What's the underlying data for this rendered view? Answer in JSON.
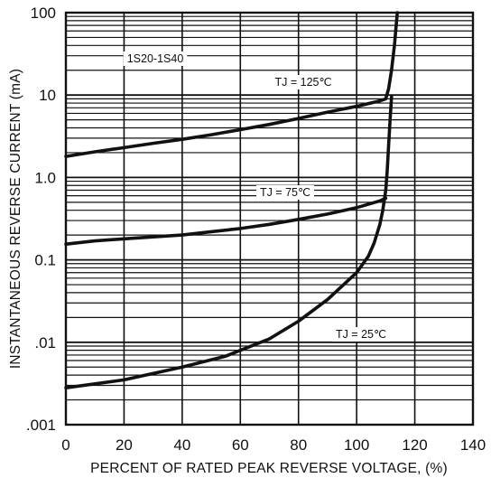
{
  "chart_data": {
    "type": "line",
    "title": "",
    "xlabel": "PERCENT OF RATED PEAK REVERSE VOLTAGE, (%)",
    "ylabel": "INSTANTANEOUS REVERSE CURRENT (mA)",
    "xlim": [
      0,
      140
    ],
    "ylim": [
      0.001,
      100
    ],
    "y_scale": "log",
    "grid": true,
    "x_ticks": [
      0,
      20,
      40,
      60,
      80,
      100,
      120,
      140
    ],
    "x_tick_labels": [
      "0",
      "20",
      "40",
      "60",
      "80",
      "100",
      "120",
      "140"
    ],
    "y_ticks": [
      0.001,
      0.01,
      0.1,
      1,
      10,
      100
    ],
    "y_tick_labels": [
      ".001",
      ".01",
      "0.1",
      "1.0",
      "10",
      "100"
    ],
    "part_label": "1S20-1S40",
    "series": [
      {
        "name": "TJ = 125℃",
        "points": [
          [
            0,
            1.8
          ],
          [
            10,
            2.05
          ],
          [
            20,
            2.3
          ],
          [
            30,
            2.6
          ],
          [
            40,
            2.9
          ],
          [
            50,
            3.3
          ],
          [
            60,
            3.8
          ],
          [
            70,
            4.4
          ],
          [
            80,
            5.2
          ],
          [
            90,
            6.2
          ],
          [
            100,
            7.3
          ],
          [
            108,
            8.5
          ],
          [
            110,
            9.0
          ],
          [
            111,
            12
          ],
          [
            112,
            20
          ],
          [
            113,
            40
          ],
          [
            114,
            100
          ]
        ]
      },
      {
        "name": "TJ = 75℃",
        "points": [
          [
            0,
            0.155
          ],
          [
            10,
            0.17
          ],
          [
            20,
            0.18
          ],
          [
            30,
            0.19
          ],
          [
            40,
            0.2
          ],
          [
            50,
            0.22
          ],
          [
            60,
            0.24
          ],
          [
            70,
            0.27
          ],
          [
            80,
            0.31
          ],
          [
            90,
            0.36
          ],
          [
            100,
            0.43
          ],
          [
            108,
            0.52
          ],
          [
            110,
            0.56
          ]
        ]
      },
      {
        "name": "TJ = 25℃",
        "points": [
          [
            0,
            0.0028
          ],
          [
            20,
            0.0035
          ],
          [
            40,
            0.005
          ],
          [
            55,
            0.0068
          ],
          [
            70,
            0.011
          ],
          [
            80,
            0.018
          ],
          [
            90,
            0.033
          ],
          [
            100,
            0.07
          ],
          [
            104,
            0.11
          ],
          [
            106,
            0.16
          ],
          [
            108,
            0.27
          ],
          [
            109,
            0.4
          ],
          [
            110,
            0.7
          ],
          [
            110.5,
            1.2
          ],
          [
            111,
            2.5
          ],
          [
            111.5,
            5
          ],
          [
            112,
            9.5
          ]
        ]
      }
    ]
  }
}
